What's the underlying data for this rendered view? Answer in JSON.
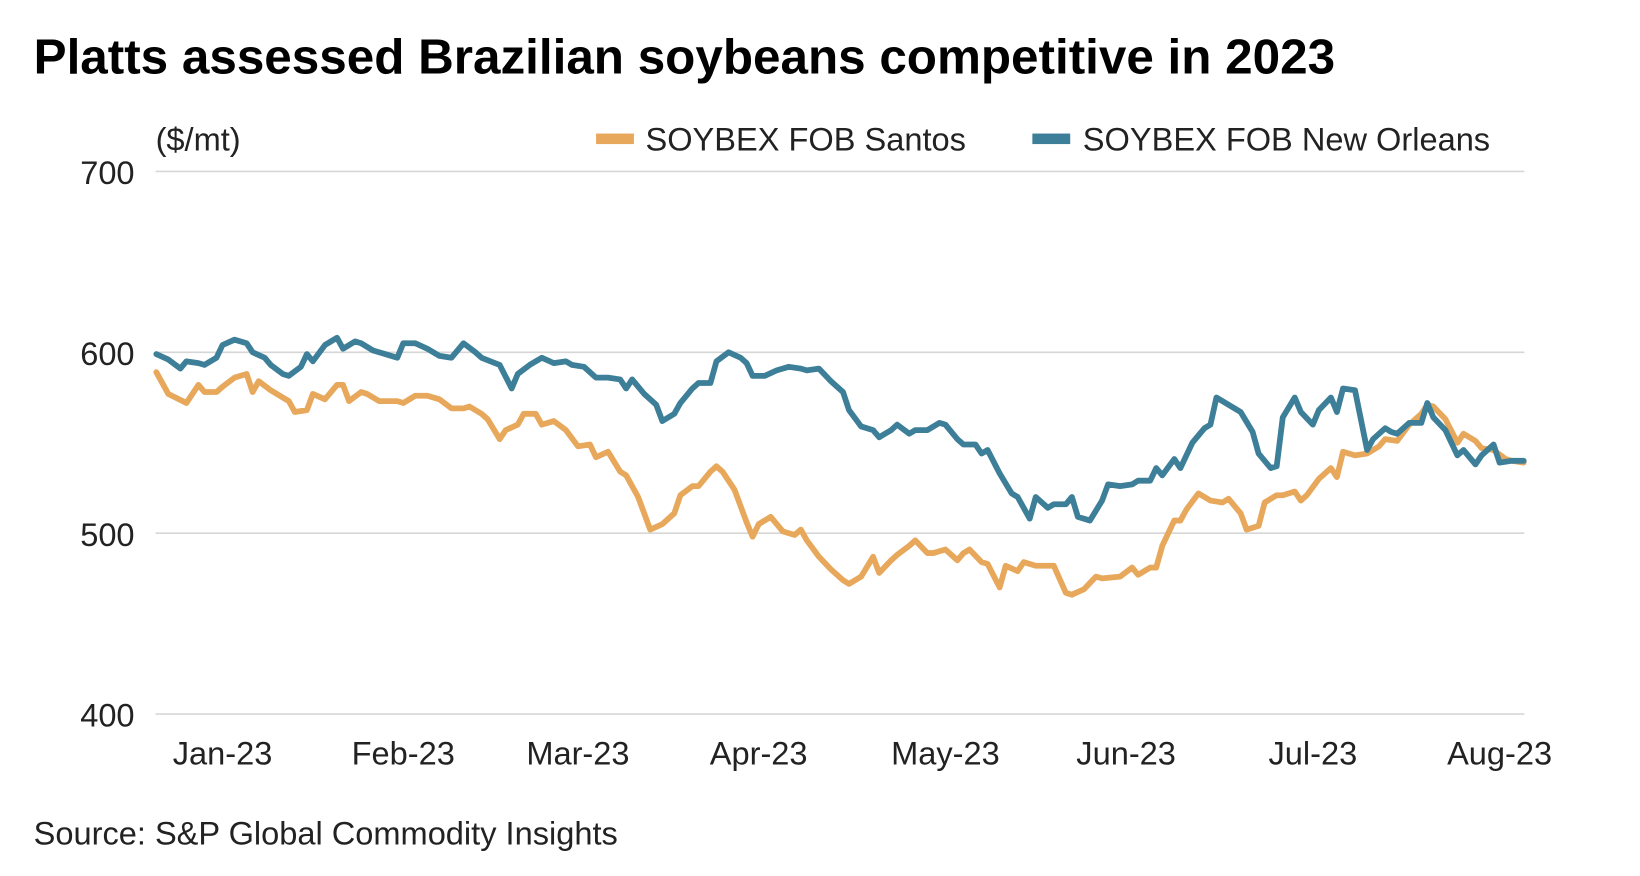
{
  "chart_data": {
    "type": "line",
    "title": "Platts assessed Brazilian soybeans competitive in 2023",
    "ylabel": "($/mt)",
    "xlabel": "",
    "ylim": [
      400,
      700
    ],
    "yticks": [
      400,
      500,
      600,
      700
    ],
    "x_units": "day of year 2023",
    "xlim": [
      1,
      240
    ],
    "xticks": [
      {
        "label": "Jan-23",
        "day": 16
      },
      {
        "label": "Feb-23",
        "day": 46
      },
      {
        "label": "Mar-23",
        "day": 75
      },
      {
        "label": "Apr-23",
        "day": 105
      },
      {
        "label": "May-23",
        "day": 136
      },
      {
        "label": "Jun-23",
        "day": 166
      },
      {
        "label": "Jul-23",
        "day": 197
      },
      {
        "label": "Aug-23",
        "day": 228
      }
    ],
    "grid": true,
    "legend_position": "top-right",
    "source": "Source: S&P Global Commodity Insights",
    "series": [
      {
        "name": "SOYBEX FOB Santos",
        "color": "#E8A85C",
        "points": [
          [
            5,
            589
          ],
          [
            7,
            577
          ],
          [
            10,
            572
          ],
          [
            12,
            582
          ],
          [
            13,
            578
          ],
          [
            15,
            578
          ],
          [
            16,
            581
          ],
          [
            18,
            586
          ],
          [
            20,
            588
          ],
          [
            21,
            578
          ],
          [
            22,
            584
          ],
          [
            24,
            579
          ],
          [
            27,
            573
          ],
          [
            28,
            567
          ],
          [
            30,
            568
          ],
          [
            31,
            577
          ],
          [
            33,
            574
          ],
          [
            35,
            582
          ],
          [
            36,
            582
          ],
          [
            37,
            573
          ],
          [
            39,
            578
          ],
          [
            40,
            577
          ],
          [
            42,
            573
          ],
          [
            45,
            573
          ],
          [
            46,
            572
          ],
          [
            48,
            576
          ],
          [
            50,
            576
          ],
          [
            52,
            574
          ],
          [
            54,
            569
          ],
          [
            56,
            569
          ],
          [
            57,
            570
          ],
          [
            59,
            566
          ],
          [
            60,
            563
          ],
          [
            62,
            552
          ],
          [
            63,
            557
          ],
          [
            65,
            560
          ],
          [
            66,
            566
          ],
          [
            68,
            566
          ],
          [
            69,
            560
          ],
          [
            71,
            562
          ],
          [
            73,
            557
          ],
          [
            75,
            548
          ],
          [
            77,
            549
          ],
          [
            78,
            542
          ],
          [
            80,
            545
          ],
          [
            82,
            534
          ],
          [
            83,
            532
          ],
          [
            85,
            520
          ],
          [
            87,
            502
          ],
          [
            89,
            505
          ],
          [
            91,
            511
          ],
          [
            92,
            521
          ],
          [
            94,
            526
          ],
          [
            95,
            526
          ],
          [
            97,
            534
          ],
          [
            98,
            537
          ],
          [
            99,
            534
          ],
          [
            101,
            524
          ],
          [
            103,
            506
          ],
          [
            104,
            498
          ],
          [
            105,
            505
          ],
          [
            107,
            509
          ],
          [
            109,
            501
          ],
          [
            111,
            499
          ],
          [
            112,
            502
          ],
          [
            113,
            496
          ],
          [
            115,
            487
          ],
          [
            117,
            480
          ],
          [
            119,
            474
          ],
          [
            120,
            472
          ],
          [
            122,
            476
          ],
          [
            124,
            487
          ],
          [
            125,
            478
          ],
          [
            127,
            485
          ],
          [
            128,
            488
          ],
          [
            130,
            493
          ],
          [
            131,
            496
          ],
          [
            133,
            489
          ],
          [
            134,
            489
          ],
          [
            136,
            491
          ],
          [
            138,
            485
          ],
          [
            139,
            489
          ],
          [
            140,
            491
          ],
          [
            142,
            484
          ],
          [
            143,
            483
          ],
          [
            145,
            470
          ],
          [
            146,
            482
          ],
          [
            148,
            479
          ],
          [
            149,
            484
          ],
          [
            151,
            482
          ],
          [
            154,
            482
          ],
          [
            156,
            467
          ],
          [
            157,
            466
          ],
          [
            159,
            469
          ],
          [
            161,
            476
          ],
          [
            162,
            475
          ],
          [
            165,
            476
          ],
          [
            167,
            481
          ],
          [
            168,
            477
          ],
          [
            170,
            481
          ],
          [
            171,
            481
          ],
          [
            172,
            493
          ],
          [
            174,
            507
          ],
          [
            175,
            507
          ],
          [
            176,
            513
          ],
          [
            178,
            522
          ],
          [
            180,
            518
          ],
          [
            182,
            517
          ],
          [
            183,
            519
          ],
          [
            185,
            511
          ],
          [
            186,
            502
          ],
          [
            188,
            504
          ],
          [
            189,
            517
          ],
          [
            191,
            521
          ],
          [
            192,
            521
          ],
          [
            194,
            523
          ],
          [
            195,
            518
          ],
          [
            196,
            521
          ],
          [
            198,
            530
          ],
          [
            200,
            536
          ],
          [
            201,
            531
          ],
          [
            202,
            545
          ],
          [
            204,
            543
          ],
          [
            206,
            544
          ],
          [
            208,
            548
          ],
          [
            209,
            552
          ],
          [
            211,
            551
          ],
          [
            213,
            560
          ],
          [
            215,
            566
          ],
          [
            216,
            571
          ],
          [
            217,
            570
          ],
          [
            219,
            563
          ],
          [
            221,
            550
          ],
          [
            222,
            555
          ],
          [
            224,
            551
          ],
          [
            225,
            547
          ],
          [
            227,
            546
          ],
          [
            229,
            541
          ],
          [
            230,
            540
          ],
          [
            232,
            539
          ]
        ]
      },
      {
        "name": "SOYBEX FOB New Orleans",
        "color": "#3D7F98",
        "points": [
          [
            5,
            599
          ],
          [
            7,
            596
          ],
          [
            9,
            591
          ],
          [
            10,
            595
          ],
          [
            12,
            594
          ],
          [
            13,
            593
          ],
          [
            15,
            597
          ],
          [
            16,
            604
          ],
          [
            18,
            607
          ],
          [
            20,
            605
          ],
          [
            21,
            600
          ],
          [
            23,
            597
          ],
          [
            24,
            593
          ],
          [
            26,
            588
          ],
          [
            27,
            587
          ],
          [
            29,
            592
          ],
          [
            30,
            599
          ],
          [
            31,
            595
          ],
          [
            33,
            604
          ],
          [
            35,
            608
          ],
          [
            36,
            602
          ],
          [
            38,
            606
          ],
          [
            39,
            605
          ],
          [
            41,
            601
          ],
          [
            43,
            599
          ],
          [
            45,
            597
          ],
          [
            46,
            605
          ],
          [
            48,
            605
          ],
          [
            50,
            602
          ],
          [
            52,
            598
          ],
          [
            54,
            597
          ],
          [
            56,
            605
          ],
          [
            58,
            600
          ],
          [
            59,
            597
          ],
          [
            62,
            593
          ],
          [
            64,
            580
          ],
          [
            65,
            588
          ],
          [
            67,
            593
          ],
          [
            69,
            597
          ],
          [
            71,
            594
          ],
          [
            73,
            595
          ],
          [
            74,
            593
          ],
          [
            76,
            592
          ],
          [
            78,
            586
          ],
          [
            80,
            586
          ],
          [
            82,
            585
          ],
          [
            83,
            580
          ],
          [
            84,
            585
          ],
          [
            86,
            577
          ],
          [
            88,
            571
          ],
          [
            89,
            562
          ],
          [
            91,
            566
          ],
          [
            92,
            572
          ],
          [
            94,
            580
          ],
          [
            95,
            583
          ],
          [
            97,
            583
          ],
          [
            98,
            595
          ],
          [
            100,
            600
          ],
          [
            102,
            597
          ],
          [
            103,
            594
          ],
          [
            104,
            587
          ],
          [
            106,
            587
          ],
          [
            108,
            590
          ],
          [
            110,
            592
          ],
          [
            112,
            591
          ],
          [
            113,
            590
          ],
          [
            115,
            591
          ],
          [
            117,
            584
          ],
          [
            119,
            578
          ],
          [
            120,
            568
          ],
          [
            122,
            559
          ],
          [
            124,
            557
          ],
          [
            125,
            553
          ],
          [
            127,
            557
          ],
          [
            128,
            560
          ],
          [
            130,
            555
          ],
          [
            131,
            557
          ],
          [
            133,
            557
          ],
          [
            135,
            561
          ],
          [
            136,
            560
          ],
          [
            138,
            552
          ],
          [
            139,
            549
          ],
          [
            141,
            549
          ],
          [
            142,
            544
          ],
          [
            143,
            546
          ],
          [
            145,
            533
          ],
          [
            147,
            522
          ],
          [
            148,
            520
          ],
          [
            150,
            508
          ],
          [
            151,
            520
          ],
          [
            153,
            514
          ],
          [
            154,
            516
          ],
          [
            156,
            516
          ],
          [
            157,
            520
          ],
          [
            158,
            509
          ],
          [
            160,
            507
          ],
          [
            162,
            518
          ],
          [
            163,
            527
          ],
          [
            165,
            526
          ],
          [
            167,
            527
          ],
          [
            168,
            529
          ],
          [
            170,
            529
          ],
          [
            171,
            536
          ],
          [
            172,
            532
          ],
          [
            174,
            541
          ],
          [
            175,
            536
          ],
          [
            177,
            550
          ],
          [
            179,
            558
          ],
          [
            180,
            560
          ],
          [
            181,
            575
          ],
          [
            183,
            571
          ],
          [
            185,
            567
          ],
          [
            187,
            556
          ],
          [
            188,
            544
          ],
          [
            190,
            536
          ],
          [
            191,
            537
          ],
          [
            192,
            564
          ],
          [
            194,
            575
          ],
          [
            195,
            567
          ],
          [
            197,
            560
          ],
          [
            198,
            568
          ],
          [
            200,
            575
          ],
          [
            201,
            567
          ],
          [
            202,
            580
          ],
          [
            204,
            579
          ],
          [
            206,
            546
          ],
          [
            207,
            552
          ],
          [
            209,
            558
          ],
          [
            210,
            556
          ],
          [
            211,
            555
          ],
          [
            213,
            561
          ],
          [
            215,
            561
          ],
          [
            216,
            572
          ],
          [
            217,
            564
          ],
          [
            219,
            557
          ],
          [
            221,
            543
          ],
          [
            222,
            546
          ],
          [
            224,
            538
          ],
          [
            225,
            543
          ],
          [
            227,
            549
          ],
          [
            228,
            539
          ],
          [
            230,
            540
          ],
          [
            232,
            540
          ]
        ]
      }
    ]
  }
}
